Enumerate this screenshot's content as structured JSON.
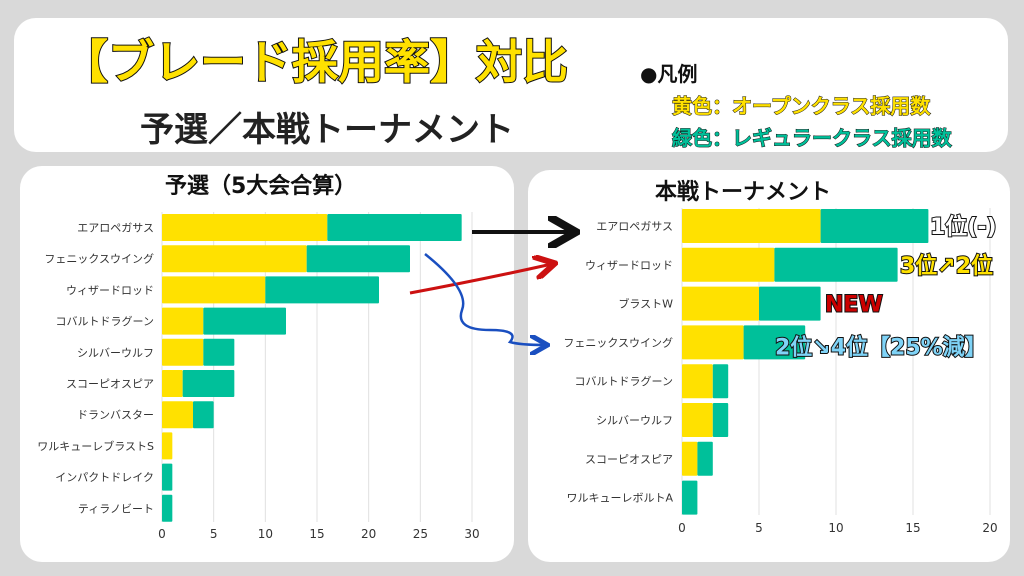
{
  "header": {
    "title": "【ブレード採用率】対比",
    "subtitle": "予選／本戦トーナメント",
    "legend_heading": "●凡例",
    "legend_yellow": "黄色：オープンクラス採用数",
    "legend_green": "緑色：レギュラークラス採用数"
  },
  "colors": {
    "open": "#ffe100",
    "regular": "#00c09a",
    "grid": "#e0e0e0"
  },
  "chart_data": [
    {
      "type": "bar",
      "orientation": "horizontal",
      "stacked": true,
      "title": "予選（5大会合算）",
      "categories": [
        "エアロペガサス",
        "フェニックスウイング",
        "ウィザードロッド",
        "コバルトドラグーン",
        "シルバーウルフ",
        "スコーピオスピア",
        "ドランバスター",
        "ワルキューレブラストS",
        "インパクトドレイク",
        "ティラノビート"
      ],
      "series": [
        {
          "name": "オープンクラス採用数",
          "color": "#ffe100",
          "values": [
            16,
            14,
            10,
            4,
            4,
            2,
            3,
            1,
            0,
            0
          ]
        },
        {
          "name": "レギュラークラス採用数",
          "color": "#00c09a",
          "values": [
            13,
            10,
            11,
            8,
            3,
            5,
            2,
            0,
            1,
            1
          ]
        }
      ],
      "xlim": [
        0,
        30
      ],
      "xticks": [
        0,
        5,
        10,
        15,
        20,
        25,
        30
      ],
      "grid": true
    },
    {
      "type": "bar",
      "orientation": "horizontal",
      "stacked": true,
      "title": "本戦トーナメント",
      "categories": [
        "エアロペガサス",
        "ウィザードロッド",
        "ブラストW",
        "フェニックスウイング",
        "コバルトドラグーン",
        "シルバーウルフ",
        "スコーピオスピア",
        "ワルキューレボルトA"
      ],
      "series": [
        {
          "name": "オープンクラス採用数",
          "color": "#ffe100",
          "values": [
            9,
            6,
            5,
            4,
            2,
            2,
            1,
            0
          ]
        },
        {
          "name": "レギュラークラス採用数",
          "color": "#00c09a",
          "values": [
            7,
            8,
            4,
            4,
            1,
            1,
            1,
            1
          ]
        }
      ],
      "xlim": [
        0,
        20
      ],
      "xticks": [
        0,
        5,
        10,
        15,
        20
      ],
      "grid": true,
      "annotations": [
        {
          "category": "エアロペガサス",
          "text": "1位(-)",
          "color": "#ffffff"
        },
        {
          "category": "ウィザードロッド",
          "text": "3位↗2位",
          "color": "#ffe100"
        },
        {
          "category": "ブラストW",
          "text": "NEW",
          "color": "#cc0000"
        },
        {
          "category": "フェニックスウイング",
          "text": "2位↘4位【25%減】",
          "color": "#7fd3f7"
        }
      ]
    }
  ]
}
